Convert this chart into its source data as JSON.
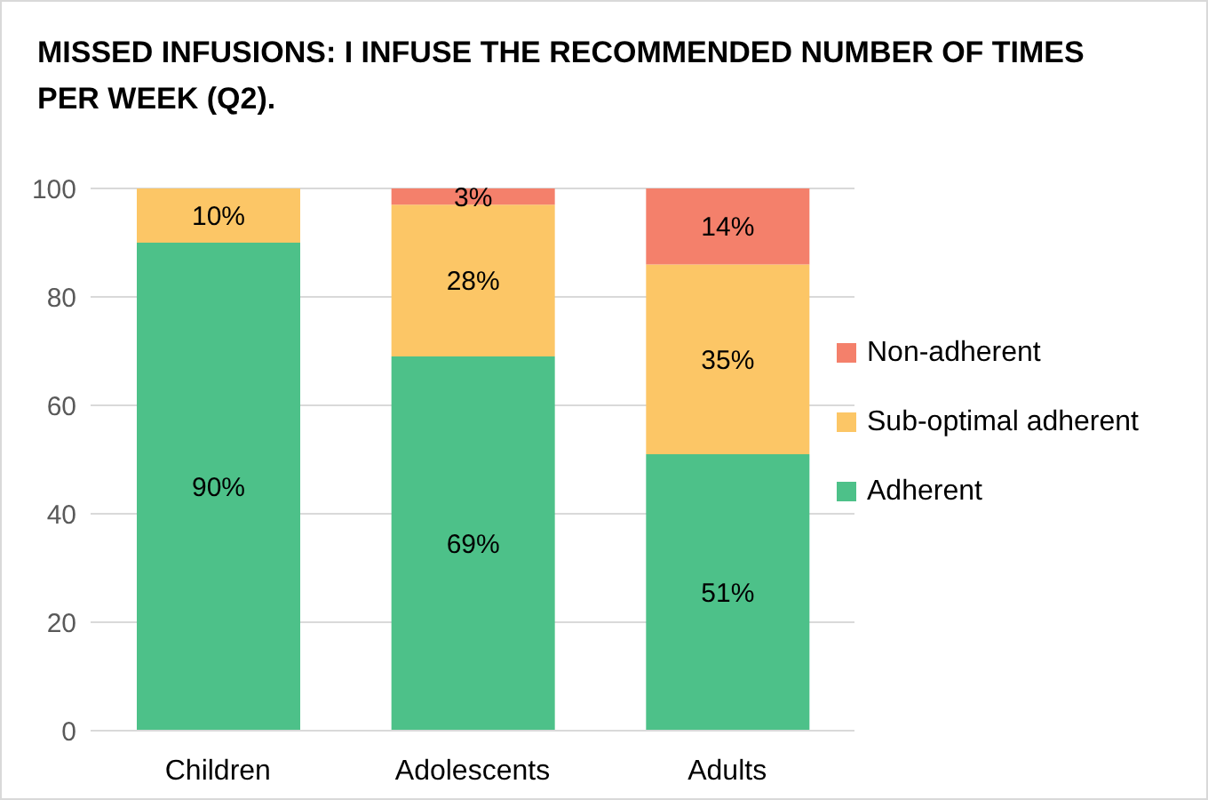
{
  "chart_data": {
    "type": "bar",
    "title": "MISSED INFUSIONS: I INFUSE THE RECOMMENDED NUMBER OF TIMES PER WEEK (Q2).",
    "categories": [
      "Children",
      "Adolescents",
      "Adults"
    ],
    "stacked": true,
    "series": [
      {
        "name": "Adherent",
        "color": "#4dc189",
        "values": [
          90,
          69,
          51
        ],
        "value_labels": [
          "90%",
          "69%",
          "51%"
        ]
      },
      {
        "name": "Sub-optimal adherent",
        "color": "#fcc666",
        "values": [
          10,
          28,
          35
        ],
        "value_labels": [
          "10%",
          "28%",
          "35%"
        ]
      },
      {
        "name": "Non-adherent",
        "color": "#f4806b",
        "values": [
          0,
          3,
          14
        ],
        "value_labels": [
          null,
          "3%",
          "14%"
        ]
      }
    ],
    "ylim": [
      0,
      100
    ],
    "yticks": [
      0,
      20,
      40,
      60,
      80,
      100
    ],
    "grid": "y",
    "legend": "right"
  }
}
